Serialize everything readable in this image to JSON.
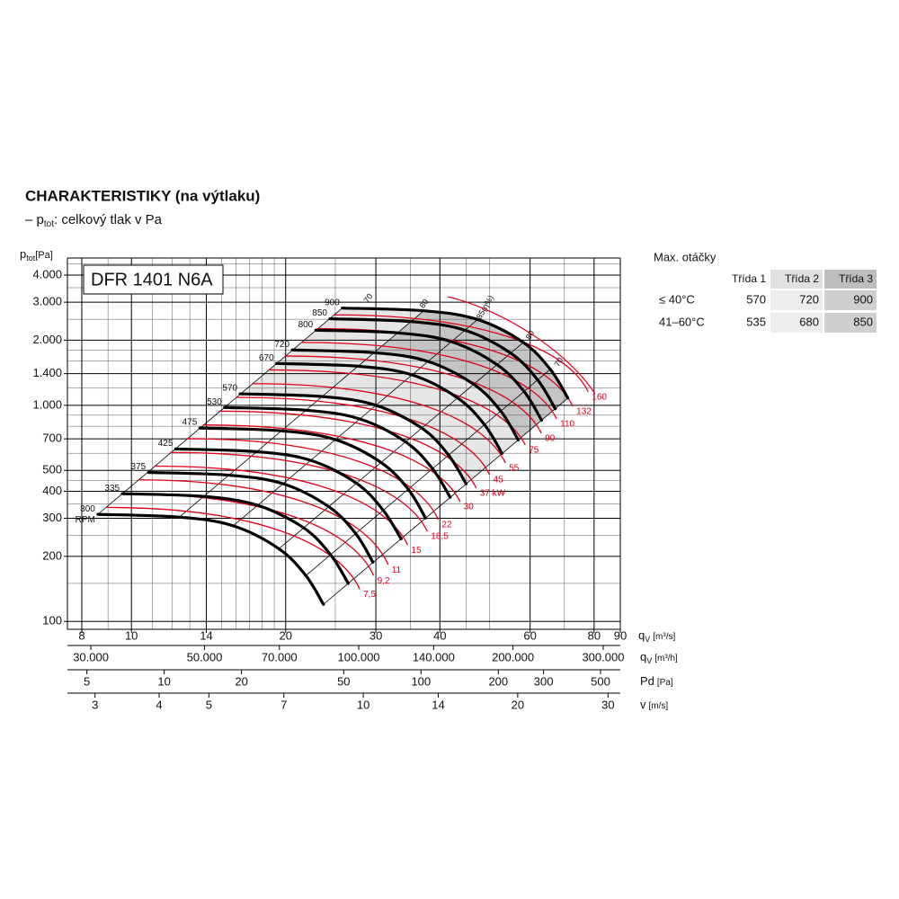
{
  "chart_data": {
    "type": "line",
    "title": "CHARAKTERISTIKY (na výtlaku)",
    "subtitle_parts": [
      "– p",
      "tot",
      ": celkový tlak v Pa"
    ],
    "model": "DFR 1401 N6A",
    "y_label_parts": [
      "p",
      "tot",
      "[Pa]"
    ],
    "x_label_parts": [
      "q",
      "V",
      "[m³/s]"
    ],
    "log_x": true,
    "log_y": true,
    "grid": true,
    "xlim": [
      7.5,
      90
    ],
    "xticks": [
      8,
      10,
      14,
      20,
      30,
      40,
      60,
      80,
      90
    ],
    "xminor": [
      9,
      11,
      12,
      13,
      15,
      16,
      17,
      18,
      19,
      25,
      35,
      45,
      50,
      70
    ],
    "ylim": [
      92,
      4800
    ],
    "yticks": [
      {
        "value": 4000,
        "label": "4.000"
      },
      {
        "value": 3000,
        "label": "3.000"
      },
      {
        "value": 2000,
        "label": "2.000"
      },
      {
        "value": 1400,
        "label": "1.400"
      },
      {
        "value": 1000,
        "label": "1.000"
      },
      700,
      500,
      400,
      300,
      200,
      100
    ],
    "yminor": [
      150,
      250,
      350,
      450,
      600,
      800,
      900,
      1200,
      1600,
      1800,
      2500,
      3500,
      4500
    ],
    "x_axes": [
      {
        "label_parts": [
          "q",
          "V",
          "[m³/h]"
        ],
        "lim": [
          27000,
          324000
        ],
        "ticks": [
          {
            "value": 30000,
            "label": "30.000"
          },
          {
            "value": 50000,
            "label": "50.000"
          },
          {
            "value": 70000,
            "label": "70.000"
          },
          {
            "value": 100000,
            "label": "100.000"
          },
          {
            "value": 140000,
            "label": "140.000"
          },
          {
            "value": 200000,
            "label": "200.000"
          },
          {
            "value": 300000,
            "label": "300.000"
          }
        ]
      },
      {
        "label_parts": [
          "Pd",
          "[Pa]"
        ],
        "lim": [
          4.2,
          597
        ],
        "ticks": [
          5,
          10,
          20,
          50,
          100,
          200,
          300,
          500
        ]
      },
      {
        "label_parts": [
          "v",
          "[m/s]"
        ],
        "lim": [
          2.65,
          31.7
        ],
        "ticks": [
          3,
          4,
          5,
          7,
          10,
          14,
          20,
          30
        ]
      }
    ],
    "rpm_unit": "RPM",
    "series": [
      {
        "name": "300",
        "color": "#000000",
        "x": [
          8.6,
          12.4,
          15.8,
          19.4,
          21.9,
          23.7
        ],
        "values": [
          313,
          304,
          277,
          217,
          163,
          120
        ]
      },
      {
        "name": "335",
        "color": "#000000",
        "x": [
          9.6,
          13.8,
          17.6,
          21.7,
          24.5,
          26.5
        ],
        "values": [
          390,
          379,
          345,
          271,
          203,
          150
        ]
      },
      {
        "name": "375",
        "color": "#000000",
        "x": [
          10.8,
          15.5,
          19.8,
          24.3,
          27.4,
          29.6
        ],
        "values": [
          489,
          475,
          433,
          339,
          255,
          188
        ]
      },
      {
        "name": "425",
        "color": "#000000",
        "x": [
          12.2,
          17.6,
          22.4,
          27.5,
          31.0,
          33.6
        ],
        "values": [
          628,
          610,
          556,
          436,
          327,
          241
        ]
      },
      {
        "name": "475",
        "color": "#000000",
        "x": [
          13.6,
          19.6,
          25.0,
          30.7,
          34.7,
          37.5
        ],
        "values": [
          785,
          762,
          694,
          544,
          409,
          301
        ]
      },
      {
        "name": "530",
        "color": "#000000",
        "x": [
          15.2,
          21.9,
          27.9,
          34.3,
          38.7,
          41.9
        ],
        "values": [
          977,
          949,
          865,
          677,
          509,
          375
        ]
      },
      {
        "name": "570",
        "color": "#000000",
        "x": [
          16.3,
          23.6,
          30.0,
          36.9,
          41.6,
          45.0
        ],
        "values": [
          1130,
          1097,
          1000,
          783,
          588,
          433
        ]
      },
      {
        "name": "670",
        "color": "#000000",
        "x": [
          19.2,
          27.7,
          35.3,
          43.3,
          48.9,
          52.9
        ],
        "values": [
          1561,
          1516,
          1382,
          1082,
          813,
          599
        ]
      },
      {
        "name": "720",
        "color": "#000000",
        "x": [
          20.6,
          29.8,
          37.9,
          46.6,
          52.6,
          56.9
        ],
        "values": [
          1803,
          1751,
          1596,
          1250,
          939,
          691
        ]
      },
      {
        "name": "800",
        "color": "#000000",
        "x": [
          22.9,
          33.1,
          42.1,
          51.7,
          58.4,
          63.2
        ],
        "values": [
          2226,
          2162,
          1970,
          1543,
          1159,
          853
        ]
      },
      {
        "name": "850",
        "color": "#000000",
        "x": [
          24.4,
          35.1,
          44.8,
          55.0,
          62.1,
          67.2
        ],
        "values": [
          2513,
          2440,
          2224,
          1742,
          1309,
          963
        ]
      },
      {
        "name": "900",
        "color": "#000000",
        "x": [
          25.8,
          37.2,
          47.4,
          58.2,
          65.7,
          71.1
        ],
        "values": [
          2817,
          2736,
          2493,
          1953,
          1467,
          1080
        ]
      }
    ],
    "power_series": [
      {
        "name": "7,5",
        "color": "#e0001a",
        "x": [
          8.9,
          27.9
        ],
        "values": [
          337,
          141
        ]
      },
      {
        "name": "9,2",
        "color": "#e0001a",
        "x": [
          9.57,
          29.7
        ],
        "values": [
          390,
          163
        ]
      },
      {
        "name": "11",
        "color": "#e0001a",
        "x": [
          10.3,
          31.7
        ],
        "values": [
          452,
          183
        ]
      },
      {
        "name": "15",
        "color": "#e0001a",
        "x": [
          11.1,
          34.6
        ],
        "values": [
          523,
          226
        ]
      },
      {
        "name": "18,5",
        "color": "#e0001a",
        "x": [
          11.9,
          37.8
        ],
        "values": [
          605,
          261
        ]
      },
      {
        "name": "22",
        "color": "#e0001a",
        "x": [
          12.8,
          39.7
        ],
        "values": [
          701,
          296
        ]
      },
      {
        "name": "30",
        "color": "#e0001a",
        "x": [
          13.8,
          43.8
        ],
        "values": [
          811,
          358
        ]
      },
      {
        "name": "37 kW",
        "color": "#e0001a",
        "x": [
          14.8,
          47.1
        ],
        "values": [
          939,
          414
        ]
      },
      {
        "name": "45",
        "color": "#e0001a",
        "x": [
          16.0,
          50.0
        ],
        "values": [
          1088,
          478
        ]
      },
      {
        "name": "55",
        "color": "#e0001a",
        "x": [
          17.2,
          53.7
        ],
        "values": [
          1259,
          541
        ]
      },
      {
        "name": "75",
        "color": "#e0001a",
        "x": [
          18.5,
          58.7
        ],
        "values": [
          1458,
          656
        ]
      },
      {
        "name": "90",
        "color": "#e0001a",
        "x": [
          19.9,
          63.1
        ],
        "values": [
          1689,
          743
        ]
      },
      {
        "name": "110",
        "color": "#e0001a",
        "x": [
          21.4,
          67.6
        ],
        "values": [
          1954,
          866
        ]
      },
      {
        "name": "132",
        "color": "#e0001a",
        "x": [
          23.0,
          72.7
        ],
        "values": [
          2262,
          990
        ]
      },
      {
        "name": "160",
        "color": "#e0001a",
        "x": [
          24.8,
          77.9
        ],
        "values": [
          2620,
          1155
        ]
      }
    ],
    "efficiency_labels": [
      "70",
      "80",
      "85(η%)",
      "80",
      "70"
    ]
  },
  "table": {
    "title": "Max. otáčky",
    "header": [
      "Třída 1",
      "Třída 2",
      "Třída 3"
    ],
    "rows": [
      {
        "label": "≤ 40°C",
        "values": [
          570,
          720,
          900
        ]
      },
      {
        "label": "41–60°C",
        "values": [
          535,
          680,
          850
        ]
      }
    ]
  }
}
